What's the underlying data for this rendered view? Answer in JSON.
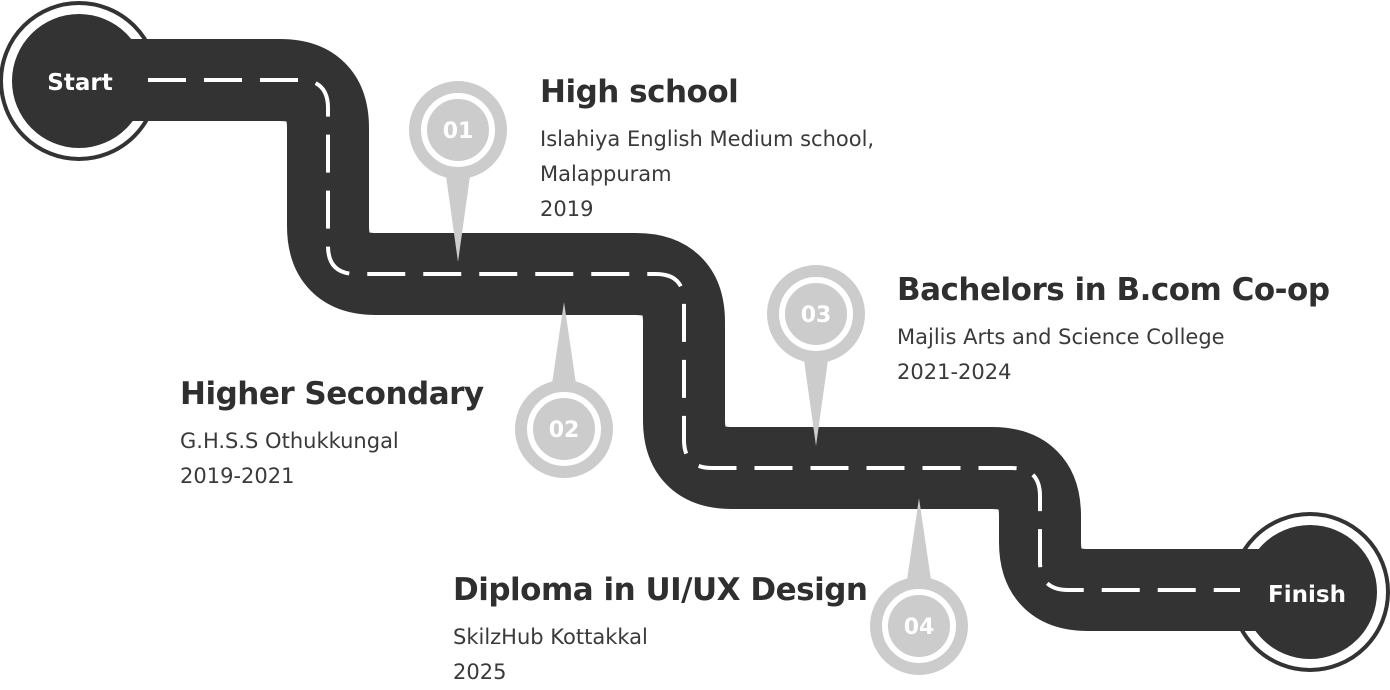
{
  "start_label": "Start",
  "finish_label": "Finish",
  "colors": {
    "road": "#333333",
    "pin": "#cccccc",
    "text": "#2e2e2e",
    "dash": "#ffffff"
  },
  "stages": [
    {
      "num": "01",
      "title": "High school",
      "lines": [
        "Islahiya English Medium school,",
        "Malappuram",
        "2019"
      ]
    },
    {
      "num": "02",
      "title": "Higher Secondary",
      "lines": [
        "G.H.S.S Othukkungal",
        "2019-2021"
      ]
    },
    {
      "num": "03",
      "title": "Bachelors in B.com Co-op",
      "lines": [
        "Majlis Arts and Science College",
        "2021-2024"
      ]
    },
    {
      "num": "04",
      "title": "Diploma in UI/UX Design",
      "lines": [
        "SkilzHub Kottakkal",
        "2025"
      ]
    }
  ]
}
